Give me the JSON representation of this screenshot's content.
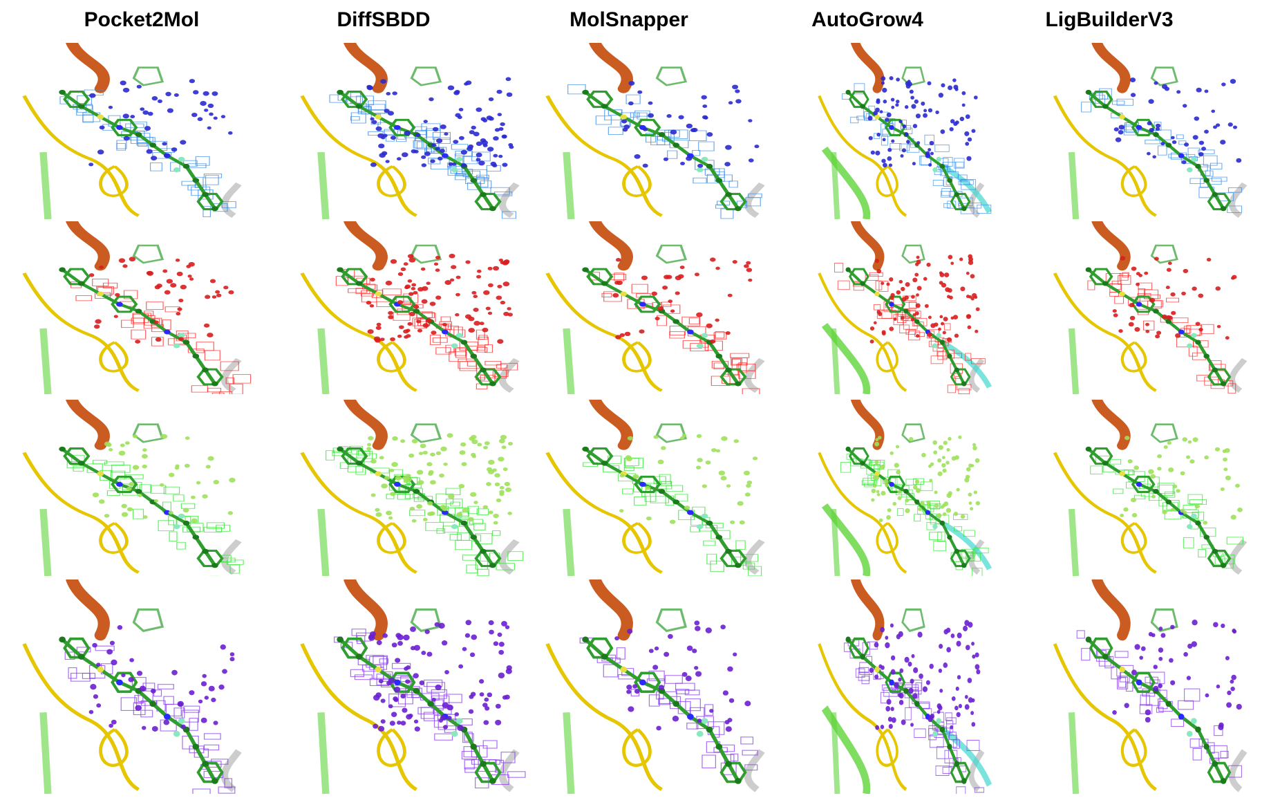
{
  "columns": [
    {
      "name": "Pocket2Mol"
    },
    {
      "name": "DiffSBDD"
    },
    {
      "name": "MolSnapper"
    },
    {
      "name": "AutoGrow4"
    },
    {
      "name": "LigBuilderV3"
    }
  ],
  "rows": [
    {
      "dot_color": "#2a2ad0",
      "mesh_color": "#3a8ee8"
    },
    {
      "dot_color": "#d81e1e",
      "mesh_color": "#ff2a2a"
    },
    {
      "dot_color": "#9ee05a",
      "mesh_color": "#2ee82e"
    },
    {
      "dot_color": "#6a1fd0",
      "mesh_color": "#8a3cf0"
    }
  ],
  "palette": {
    "ligand": "#2f9e2f",
    "ligand_dark": "#1b7a1b",
    "strand_yellow": "#e6c600",
    "helix_orange": "#c44a0a",
    "strand_green": "#5fd43a",
    "nitrogen": "#2a2aff",
    "sulfur": "#e8e040",
    "fluorine": "#8ae8c0"
  }
}
